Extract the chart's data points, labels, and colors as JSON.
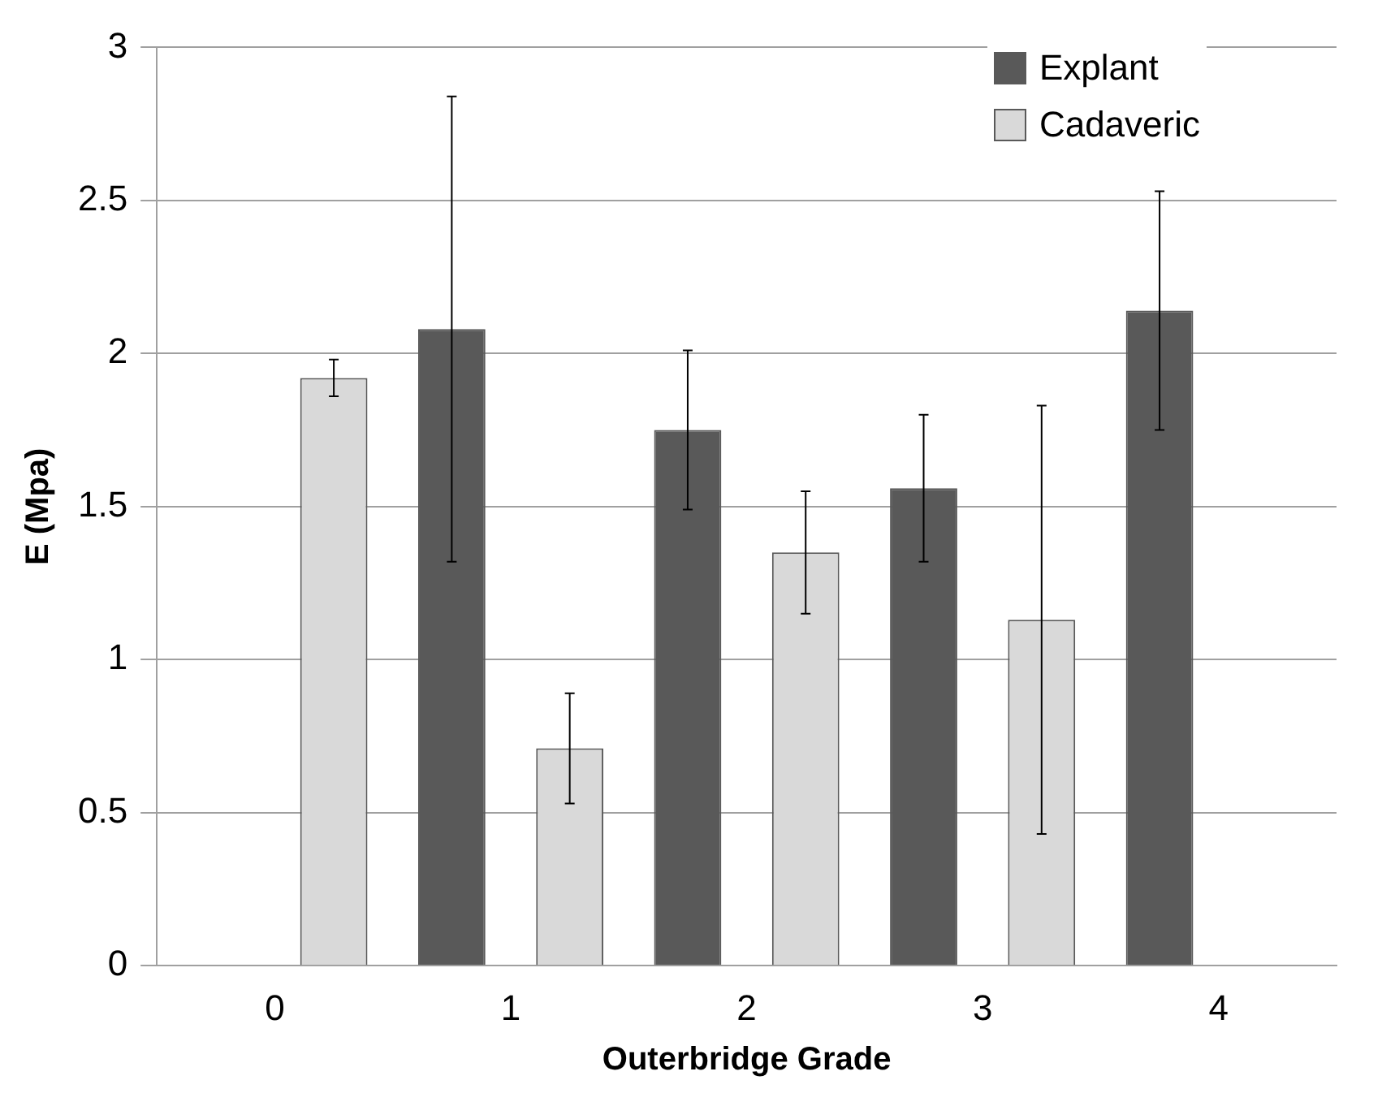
{
  "chart_data": {
    "type": "bar",
    "xlabel": "Outerbridge Grade",
    "ylabel": "E (Mpa)",
    "categories": [
      "0",
      "1",
      "2",
      "3",
      "4"
    ],
    "series": [
      {
        "name": "Explant",
        "color": "#595959",
        "values": [
          null,
          2.08,
          1.75,
          1.56,
          2.14
        ],
        "errors": [
          null,
          0.76,
          0.26,
          0.24,
          0.39
        ]
      },
      {
        "name": "Cadaveric",
        "color": "#d9d9d9",
        "values": [
          1.92,
          0.71,
          1.35,
          1.13,
          0
        ],
        "errors": [
          0.06,
          0.18,
          0.2,
          0.7,
          null
        ]
      }
    ],
    "ylim": [
      0,
      3
    ],
    "yticks": [
      0,
      0.5,
      1,
      1.5,
      2,
      2.5,
      3
    ],
    "grid": "y",
    "legend": "top right"
  }
}
